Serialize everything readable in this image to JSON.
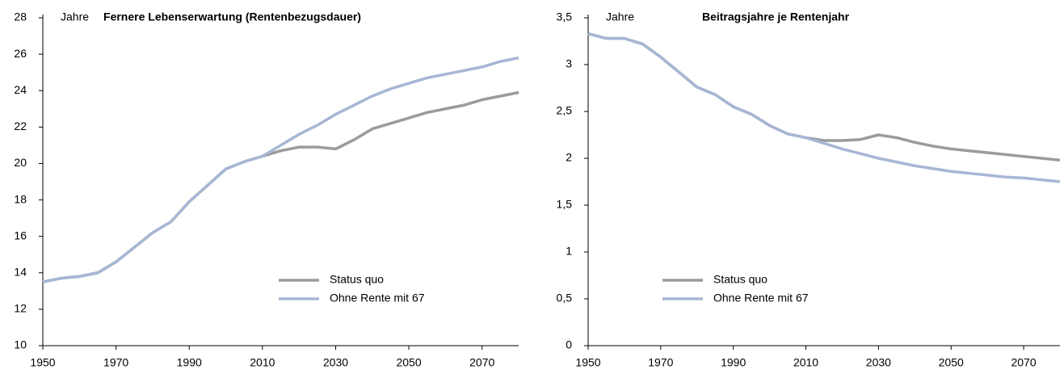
{
  "chart_data": [
    {
      "type": "line",
      "title": "Fernere Lebenserwartung (Rentenbezugsdauer)",
      "annotation": "Jahre",
      "x": [
        1950,
        1955,
        1960,
        1965,
        1970,
        1975,
        1980,
        1985,
        1990,
        1995,
        2000,
        2005,
        2010,
        2015,
        2020,
        2025,
        2030,
        2035,
        2040,
        2045,
        2050,
        2055,
        2060,
        2065,
        2070,
        2075,
        2080
      ],
      "xlim": [
        1950,
        2080
      ],
      "xticks": [
        1950,
        1970,
        1990,
        2010,
        2030,
        2050,
        2070
      ],
      "ylim": [
        10,
        28
      ],
      "yticks": [
        10,
        12,
        14,
        16,
        18,
        20,
        22,
        24,
        26,
        28
      ],
      "series": [
        {
          "name": "Status quo",
          "color": "#9b9b9b",
          "values": [
            13.5,
            13.7,
            13.8,
            14.0,
            14.6,
            15.4,
            16.2,
            16.8,
            17.9,
            18.8,
            19.7,
            20.1,
            20.4,
            20.7,
            20.9,
            20.9,
            20.8,
            21.3,
            21.9,
            22.2,
            22.5,
            22.8,
            23.0,
            23.2,
            23.5,
            23.7,
            23.9
          ]
        },
        {
          "name": "Ohne Rente mit 67",
          "color": "#a7b6d4",
          "values": [
            13.5,
            13.7,
            13.8,
            14.0,
            14.6,
            15.4,
            16.2,
            16.8,
            17.9,
            18.8,
            19.7,
            20.1,
            20.4,
            21.0,
            21.6,
            22.1,
            22.7,
            23.2,
            23.7,
            24.1,
            24.4,
            24.7,
            24.9,
            25.1,
            25.3,
            25.6,
            25.8
          ]
        }
      ]
    },
    {
      "type": "line",
      "title": "Beitragsjahre je Rentenjahr",
      "annotation": "Jahre",
      "x": [
        1950,
        1955,
        1960,
        1965,
        1970,
        1975,
        1980,
        1985,
        1990,
        1995,
        2000,
        2005,
        2010,
        2015,
        2020,
        2025,
        2030,
        2035,
        2040,
        2045,
        2050,
        2055,
        2060,
        2065,
        2070,
        2075,
        2080
      ],
      "xlim": [
        1950,
        2080
      ],
      "xticks": [
        1950,
        1970,
        1990,
        2010,
        2030,
        2050,
        2070
      ],
      "ylim": [
        0,
        3.5
      ],
      "yticks": [
        0,
        {
          "value": 0.5,
          "label": "0,5"
        },
        1,
        {
          "value": 1.5,
          "label": "1,5"
        },
        2,
        {
          "value": 2.5,
          "label": "2,5"
        },
        3,
        {
          "value": 3.5,
          "label": "3,5"
        }
      ],
      "series": [
        {
          "name": "Status quo",
          "color": "#9b9b9b",
          "values": [
            3.33,
            3.28,
            3.28,
            3.22,
            3.08,
            2.92,
            2.76,
            2.68,
            2.55,
            2.47,
            2.35,
            2.26,
            2.22,
            2.19,
            2.19,
            2.2,
            2.25,
            2.22,
            2.17,
            2.13,
            2.1,
            2.08,
            2.06,
            2.04,
            2.02,
            2.0,
            1.98
          ]
        },
        {
          "name": "Ohne Rente mit 67",
          "color": "#a7b6d4",
          "values": [
            3.33,
            3.28,
            3.28,
            3.22,
            3.08,
            2.92,
            2.76,
            2.68,
            2.55,
            2.47,
            2.35,
            2.26,
            2.22,
            2.16,
            2.1,
            2.05,
            2.0,
            1.96,
            1.92,
            1.89,
            1.86,
            1.84,
            1.82,
            1.8,
            1.79,
            1.77,
            1.75
          ]
        }
      ]
    }
  ]
}
